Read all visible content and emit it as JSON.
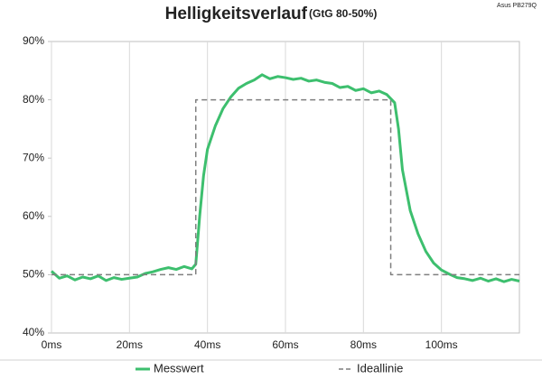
{
  "chart_data": {
    "type": "line",
    "title": "Helligkeitsverlauf",
    "subtitle": "(GtG 80-50%)",
    "corner_label": "Asus PB279Q",
    "xlim": [
      0,
      120
    ],
    "xticks": [
      {
        "value": 0,
        "label": "0ms"
      },
      {
        "value": 20,
        "label": "20ms"
      },
      {
        "value": 40,
        "label": "40ms"
      },
      {
        "value": 60,
        "label": "60ms"
      },
      {
        "value": 80,
        "label": "80ms"
      },
      {
        "value": 100,
        "label": "100ms"
      }
    ],
    "ylim": [
      40,
      90
    ],
    "yticks": [
      {
        "value": 40,
        "label": "40%"
      },
      {
        "value": 50,
        "label": "50%"
      },
      {
        "value": 60,
        "label": "60%"
      },
      {
        "value": 70,
        "label": "70%"
      },
      {
        "value": 80,
        "label": "80%"
      },
      {
        "value": 90,
        "label": "90%"
      }
    ],
    "xgrid": true,
    "legend": "bottom",
    "series": [
      {
        "name": "Messwert",
        "color": "#3dbf6e",
        "dash": false,
        "x": [
          0,
          2,
          4,
          6,
          8,
          10,
          12,
          14,
          16,
          18,
          20,
          22,
          24,
          26,
          28,
          30,
          32,
          34,
          36,
          37,
          38,
          39,
          40,
          42,
          44,
          46,
          48,
          50,
          52,
          54,
          56,
          58,
          60,
          62,
          64,
          66,
          68,
          70,
          72,
          74,
          76,
          78,
          80,
          82,
          84,
          86,
          88,
          89,
          90,
          92,
          94,
          96,
          98,
          100,
          102,
          104,
          106,
          108,
          110,
          112,
          114,
          116,
          118,
          120
        ],
        "values": [
          50.6,
          49.4,
          49.8,
          49.1,
          49.6,
          49.3,
          49.8,
          49.0,
          49.5,
          49.2,
          49.4,
          49.6,
          50.2,
          50.5,
          50.9,
          51.2,
          50.9,
          51.4,
          51.0,
          51.8,
          60,
          67,
          71.5,
          75.5,
          78.5,
          80.5,
          82,
          82.8,
          83.4,
          84.3,
          83.6,
          84.0,
          83.8,
          83.5,
          83.7,
          83.2,
          83.4,
          83.0,
          82.8,
          82.1,
          82.3,
          81.6,
          81.9,
          81.2,
          81.5,
          80.9,
          79.5,
          75,
          68,
          61,
          57,
          54,
          52,
          50.8,
          50.1,
          49.5,
          49.3,
          49.0,
          49.4,
          48.9,
          49.3,
          48.8,
          49.2,
          48.9
        ]
      },
      {
        "name": "Ideallinie",
        "color": "#7f7f7f",
        "dash": true,
        "x": [
          0,
          37,
          37,
          87,
          87,
          120
        ],
        "values": [
          50,
          50,
          80,
          80,
          50,
          50
        ]
      }
    ]
  }
}
